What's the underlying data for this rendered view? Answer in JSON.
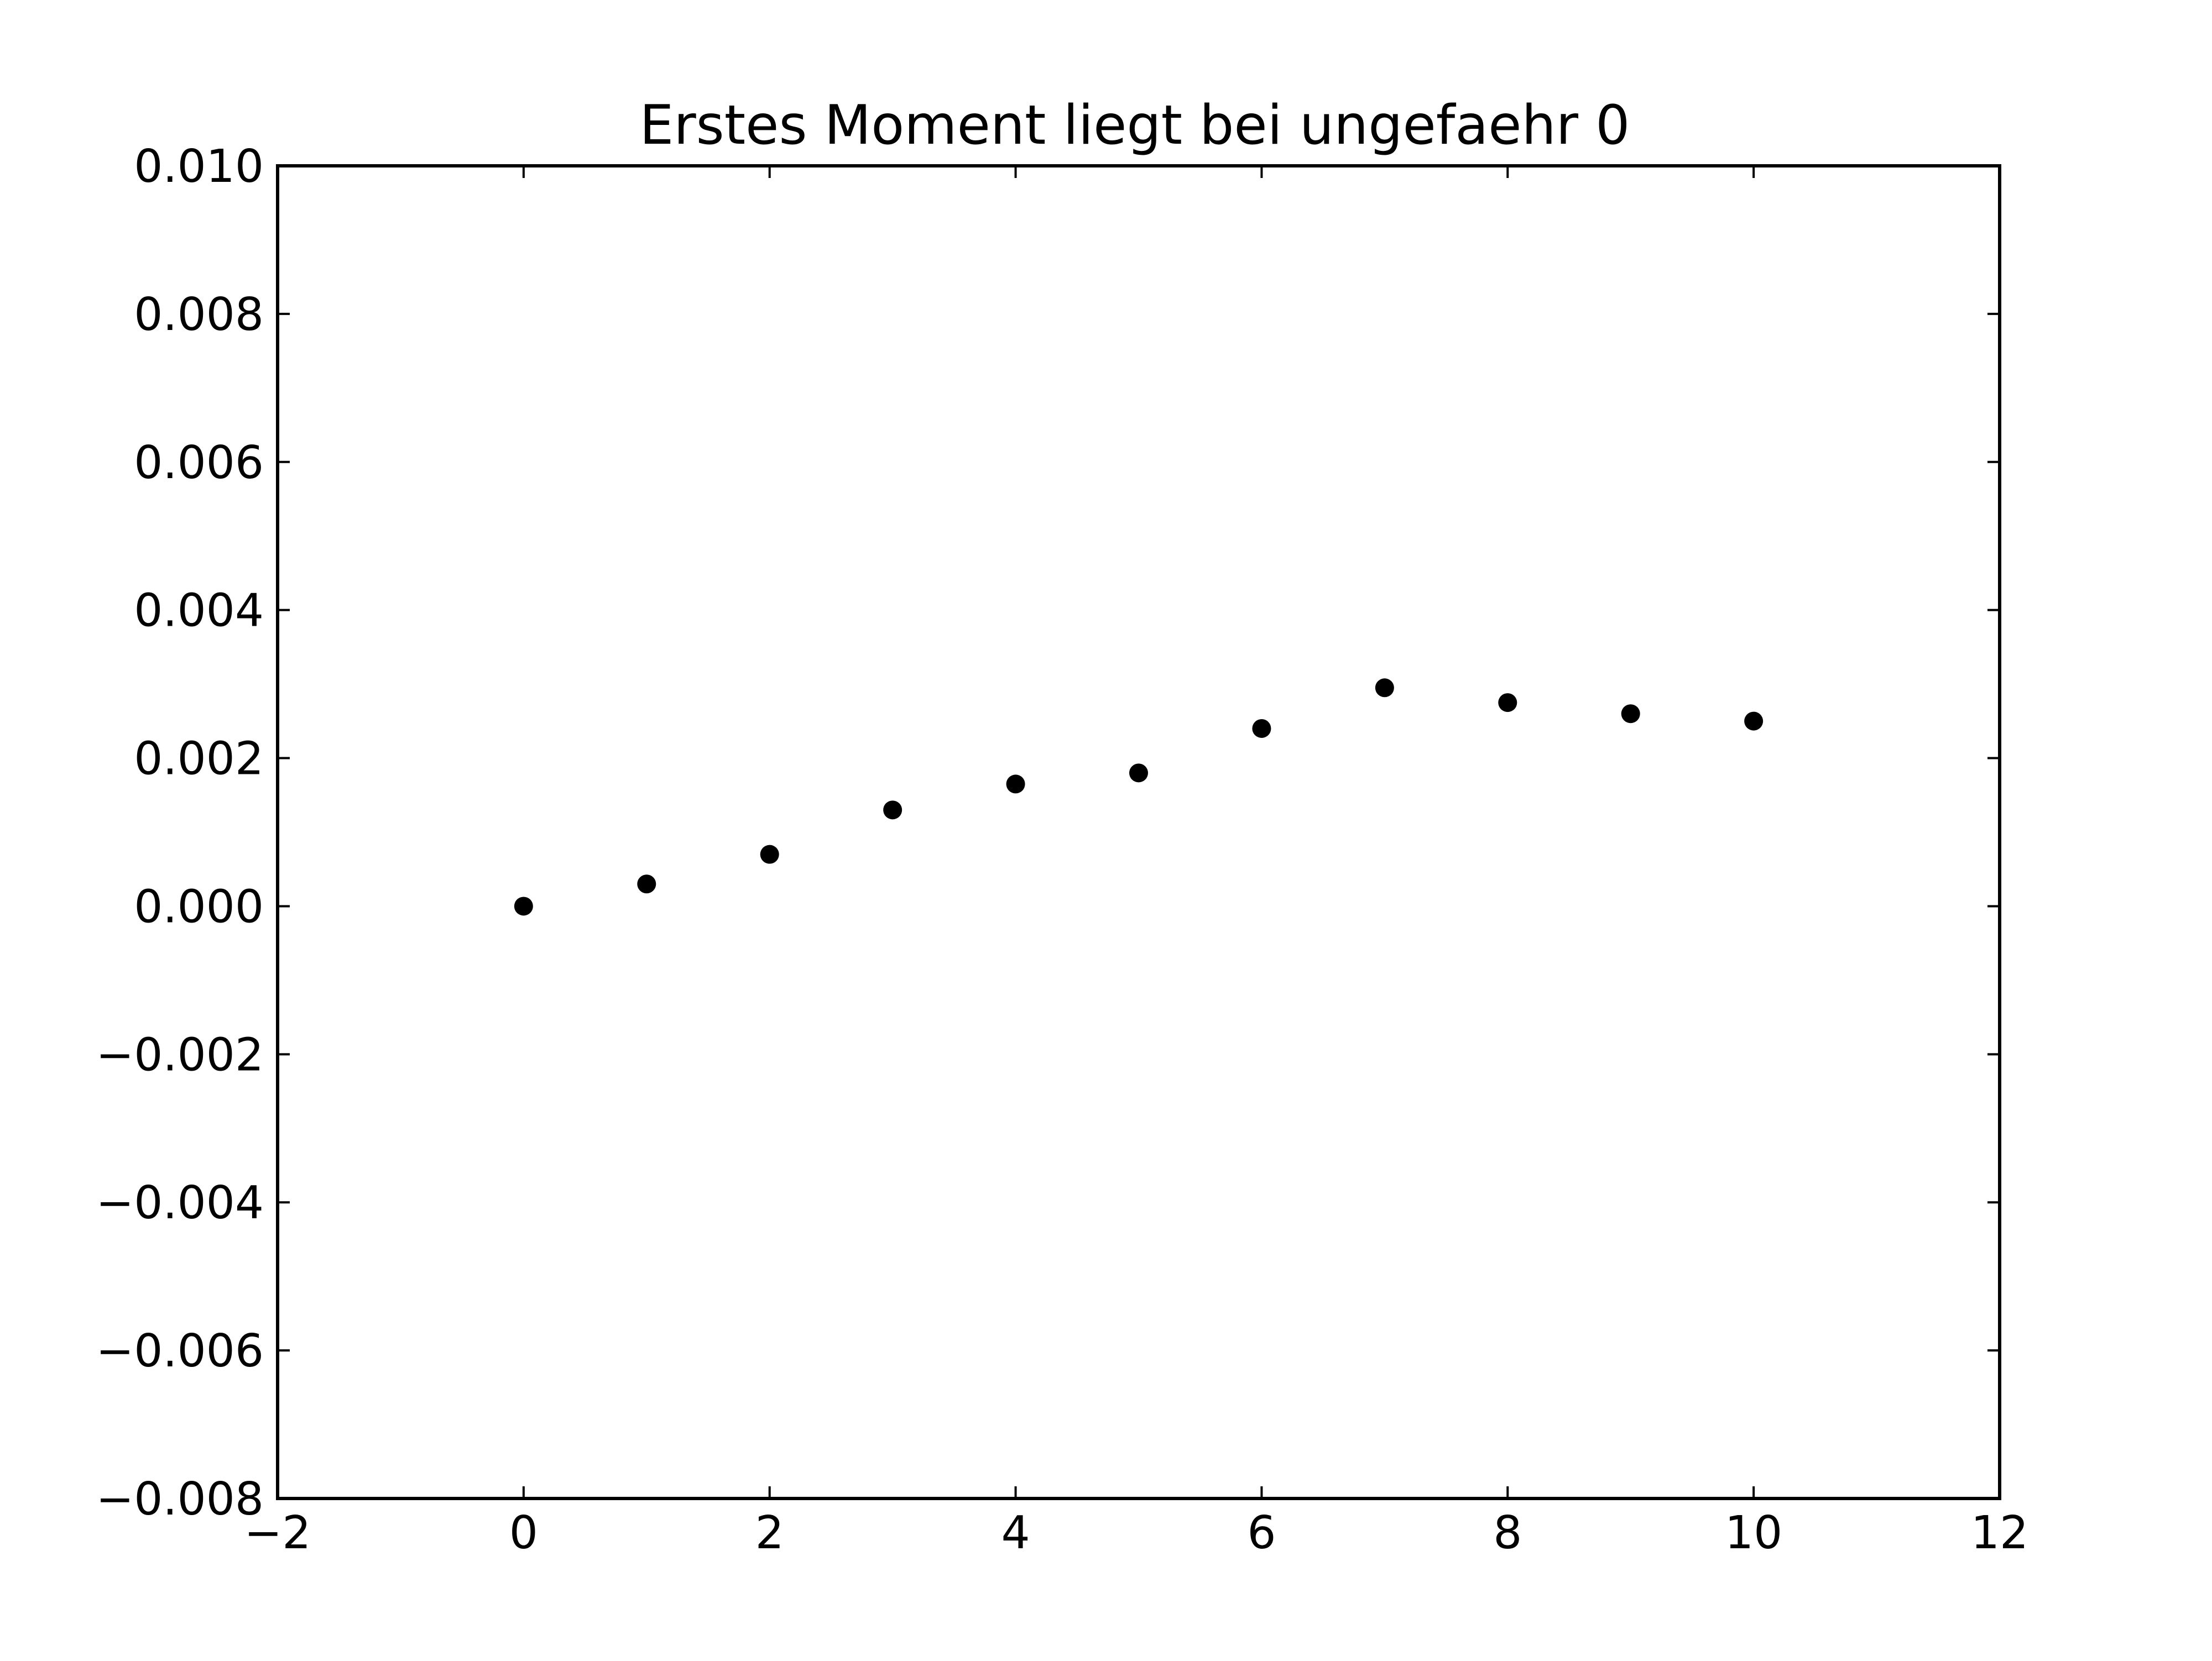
{
  "chart_data": {
    "type": "scatter",
    "title": "Erstes Moment liegt bei ungefaehr 0",
    "xlabel": "",
    "ylabel": "",
    "xlim": [
      -2,
      12
    ],
    "ylim": [
      -0.008,
      0.01
    ],
    "xticks": [
      {
        "value": -2,
        "label": "−2"
      },
      {
        "value": 0,
        "label": "0"
      },
      {
        "value": 2,
        "label": "2"
      },
      {
        "value": 4,
        "label": "4"
      },
      {
        "value": 6,
        "label": "6"
      },
      {
        "value": 8,
        "label": "8"
      },
      {
        "value": 10,
        "label": "10"
      },
      {
        "value": 12,
        "label": "12"
      }
    ],
    "yticks": [
      {
        "value": -0.008,
        "label": "−0.008"
      },
      {
        "value": -0.006,
        "label": "−0.006"
      },
      {
        "value": -0.004,
        "label": "−0.004"
      },
      {
        "value": -0.002,
        "label": "−0.002"
      },
      {
        "value": 0.0,
        "label": "0.000"
      },
      {
        "value": 0.002,
        "label": "0.002"
      },
      {
        "value": 0.004,
        "label": "0.004"
      },
      {
        "value": 0.006,
        "label": "0.006"
      },
      {
        "value": 0.008,
        "label": "0.008"
      },
      {
        "value": 0.01,
        "label": "0.010"
      }
    ],
    "grid": false,
    "legend": "none",
    "series": [
      {
        "color": "#000000",
        "marker": "circle",
        "x": [
          0,
          1,
          2,
          3,
          4,
          5,
          6,
          7,
          8,
          9,
          10
        ],
        "y": [
          0.0,
          0.0003,
          0.0007,
          0.0013,
          0.00165,
          0.0018,
          0.0024,
          0.00295,
          0.00275,
          0.0026,
          0.0025
        ]
      }
    ]
  }
}
